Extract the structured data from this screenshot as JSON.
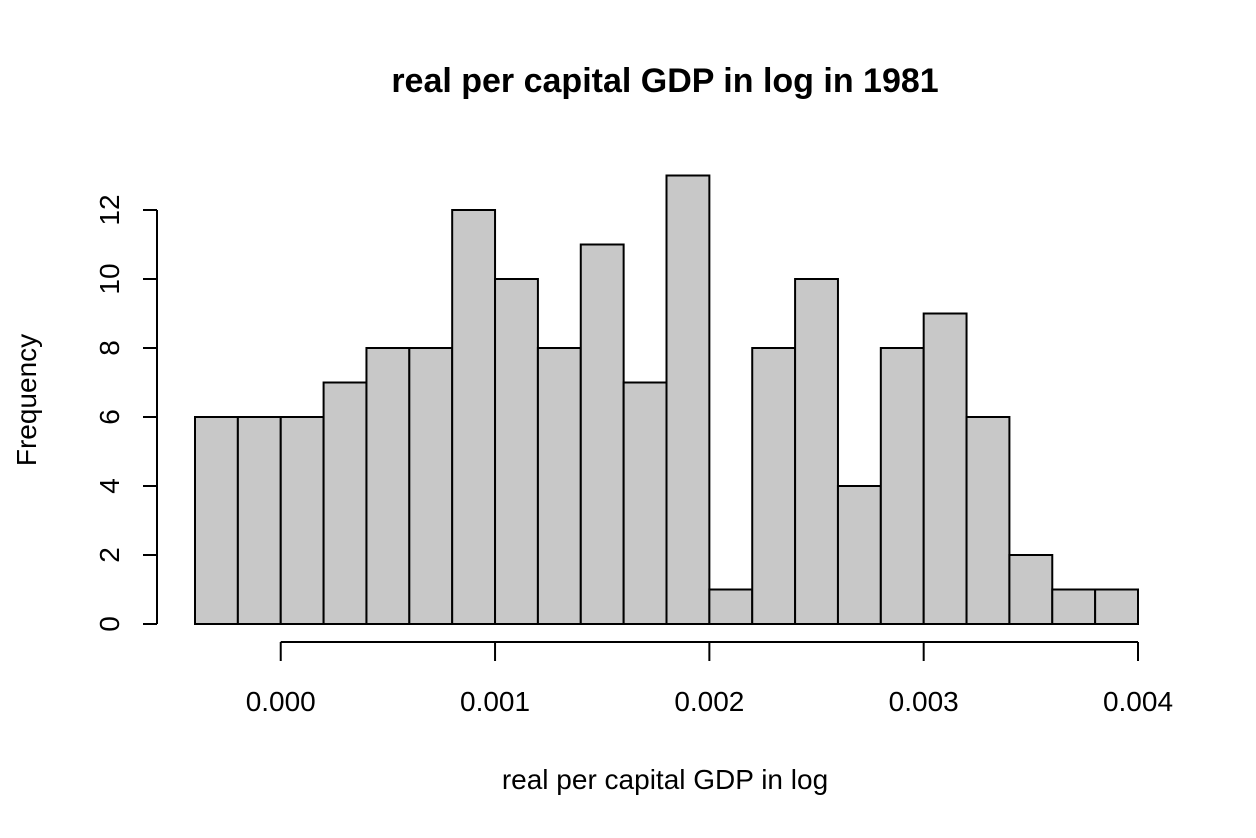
{
  "chart_data": {
    "type": "bar",
    "title": "real per capital GDP in log in 1981",
    "xlabel": "real per capital GDP in log",
    "ylabel": "Frequency",
    "bin_edges": [
      -0.0004,
      -0.0002,
      0.0,
      0.0002,
      0.0004,
      0.0006,
      0.0008,
      0.001,
      0.0012,
      0.0014,
      0.0016,
      0.0018,
      0.002,
      0.0022,
      0.0024,
      0.0026,
      0.0028,
      0.003,
      0.0032,
      0.0034,
      0.0036,
      0.0038,
      0.004
    ],
    "values": [
      6,
      6,
      6,
      7,
      8,
      8,
      12,
      10,
      8,
      11,
      7,
      13,
      1,
      8,
      10,
      4,
      8,
      9,
      6,
      2,
      1,
      1
    ],
    "xlim": [
      -0.0004,
      0.004
    ],
    "ylim": [
      0,
      13
    ],
    "x_ticks": [
      0.0,
      0.001,
      0.002,
      0.003,
      0.004
    ],
    "x_tick_labels": [
      "0.000",
      "0.001",
      "0.002",
      "0.003",
      "0.004"
    ],
    "y_ticks": [
      0,
      2,
      4,
      6,
      8,
      10,
      12
    ],
    "y_tick_labels": [
      "0",
      "2",
      "4",
      "6",
      "8",
      "10",
      "12"
    ],
    "grid": false,
    "colors": {
      "bar_fill": "#c8c8c8",
      "bar_stroke": "#000000"
    }
  }
}
